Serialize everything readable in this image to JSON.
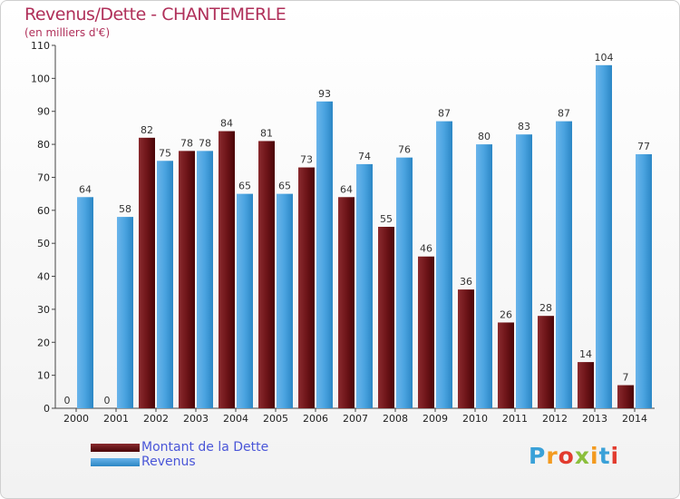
{
  "title": "Revenus/Dette - CHANTEMERLE",
  "subtitle": "(en milliers d'€)",
  "colors": {
    "dette": "#6b0f14",
    "revenus": "#3d9ad8"
  },
  "legend": [
    "Montant de la Dette",
    "Revenus"
  ],
  "logo": {
    "text": "Proxiti",
    "colors": [
      "#3aa1d8",
      "#f39a1f",
      "#e23b2e",
      "#8bbf3c",
      "#f39a1f",
      "#3aa1d8",
      "#e23b2e"
    ]
  },
  "chart_data": {
    "type": "bar",
    "categories": [
      "2000",
      "2001",
      "2002",
      "2003",
      "2004",
      "2005",
      "2006",
      "2007",
      "2008",
      "2009",
      "2010",
      "2011",
      "2012",
      "2013",
      "2014"
    ],
    "series": [
      {
        "name": "Montant de la Dette",
        "values": [
          0,
          0,
          82,
          78,
          84,
          81,
          73,
          64,
          55,
          46,
          36,
          26,
          28,
          14,
          7
        ]
      },
      {
        "name": "Revenus",
        "values": [
          64,
          58,
          75,
          78,
          65,
          65,
          93,
          74,
          76,
          87,
          80,
          83,
          87,
          104,
          77
        ]
      }
    ],
    "yticks": [
      0,
      10,
      20,
      30,
      40,
      50,
      60,
      70,
      80,
      90,
      100,
      110
    ],
    "ylim": [
      0,
      110
    ],
    "grid": false
  }
}
